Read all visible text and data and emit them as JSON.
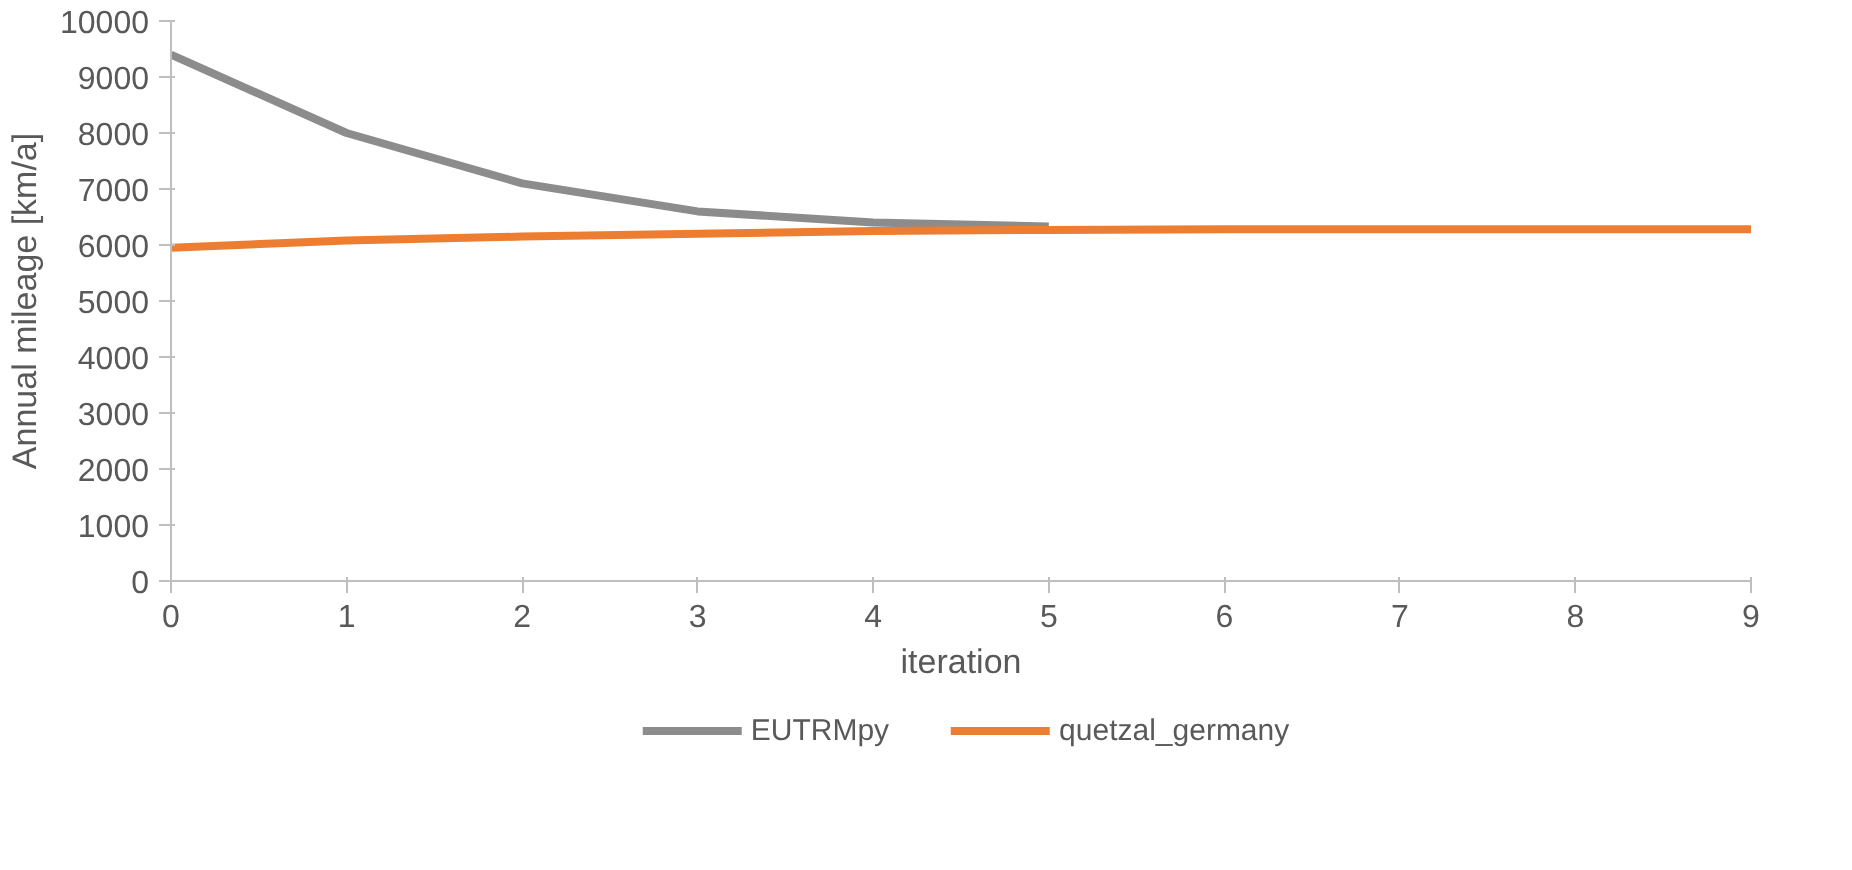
{
  "chart_data": {
    "type": "line",
    "xlabel": "iteration",
    "ylabel": "Annual mileage [km/a]",
    "x": [
      0,
      1,
      2,
      3,
      4,
      5,
      6,
      7,
      8,
      9
    ],
    "series": [
      {
        "name": "EUTRMpy",
        "color": "#8c8c8c",
        "values": [
          9400,
          8000,
          7100,
          6600,
          6400,
          6330,
          null,
          null,
          null,
          null
        ]
      },
      {
        "name": "quetzal_germany",
        "color": "#ed7d31",
        "values": [
          5950,
          6080,
          6150,
          6200,
          6250,
          6270,
          6280,
          6280,
          6280,
          6280
        ]
      }
    ],
    "xlim": [
      0,
      9
    ],
    "xticks": [
      0,
      1,
      2,
      3,
      4,
      5,
      6,
      7,
      8,
      9
    ],
    "ylim": [
      0,
      10000
    ],
    "yticks": [
      0,
      1000,
      2000,
      3000,
      4000,
      5000,
      6000,
      7000,
      8000,
      9000,
      10000
    ],
    "grid": false,
    "legend": "bottom",
    "marker": "none",
    "line_style": "solid"
  }
}
